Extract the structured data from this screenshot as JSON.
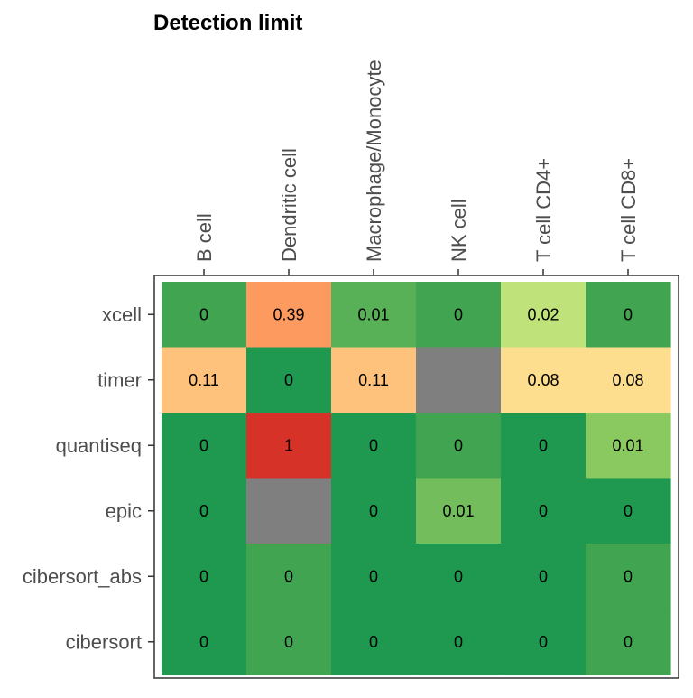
{
  "chart_data": {
    "type": "heatmap",
    "title": "Detection limit",
    "columns": [
      "B cell",
      "Dendritic cell",
      "Macrophage/Monocyte",
      "NK cell",
      "T cell CD4+",
      "T cell CD8+"
    ],
    "rows": [
      "xcell",
      "timer",
      "quantiseq",
      "epic",
      "cibersort_abs",
      "cibersort"
    ],
    "values": [
      [
        0,
        0.39,
        0.01,
        0,
        0.02,
        0
      ],
      [
        0.11,
        0,
        0.11,
        null,
        0.08,
        0.08
      ],
      [
        0,
        1,
        0,
        0,
        0,
        0.01
      ],
      [
        0,
        null,
        0,
        0.01,
        0,
        0
      ],
      [
        0,
        0,
        0,
        0,
        0,
        0
      ],
      [
        0,
        0,
        0,
        0,
        0,
        0
      ]
    ],
    "cell_labels": [
      [
        "0",
        "0.39",
        "0.01",
        "0",
        "0.02",
        "0"
      ],
      [
        "0.11",
        "0",
        "0.11",
        "",
        "0.08",
        "0.08"
      ],
      [
        "0",
        "1",
        "0",
        "0",
        "0",
        "0.01"
      ],
      [
        "0",
        "",
        "0",
        "0.01",
        "0",
        "0"
      ],
      [
        "0",
        "0",
        "0",
        "0",
        "0",
        "0"
      ],
      [
        "0",
        "0",
        "0",
        "0",
        "0",
        "0"
      ]
    ],
    "cell_colors": [
      [
        "#41a451",
        "#fd9a5f",
        "#58b157",
        "#41a451",
        "#c0e27a",
        "#41a451"
      ],
      [
        "#fec27c",
        "#1f9850",
        "#fec27c",
        "#7f7f7f",
        "#fddd8e",
        "#fddd8e"
      ],
      [
        "#1f9850",
        "#d73228",
        "#1f9850",
        "#41a451",
        "#1f9850",
        "#8ac95f"
      ],
      [
        "#1f9850",
        "#7f7f7f",
        "#1f9850",
        "#73bd5c",
        "#1f9850",
        "#1f9850"
      ],
      [
        "#1f9850",
        "#41a451",
        "#1f9850",
        "#1f9850",
        "#1f9850",
        "#41a451"
      ],
      [
        "#1f9850",
        "#41a451",
        "#1f9850",
        "#1f9850",
        "#1f9850",
        "#41a451"
      ]
    ],
    "na_color": "#7f7f7f",
    "grid": false,
    "legend": "none"
  }
}
